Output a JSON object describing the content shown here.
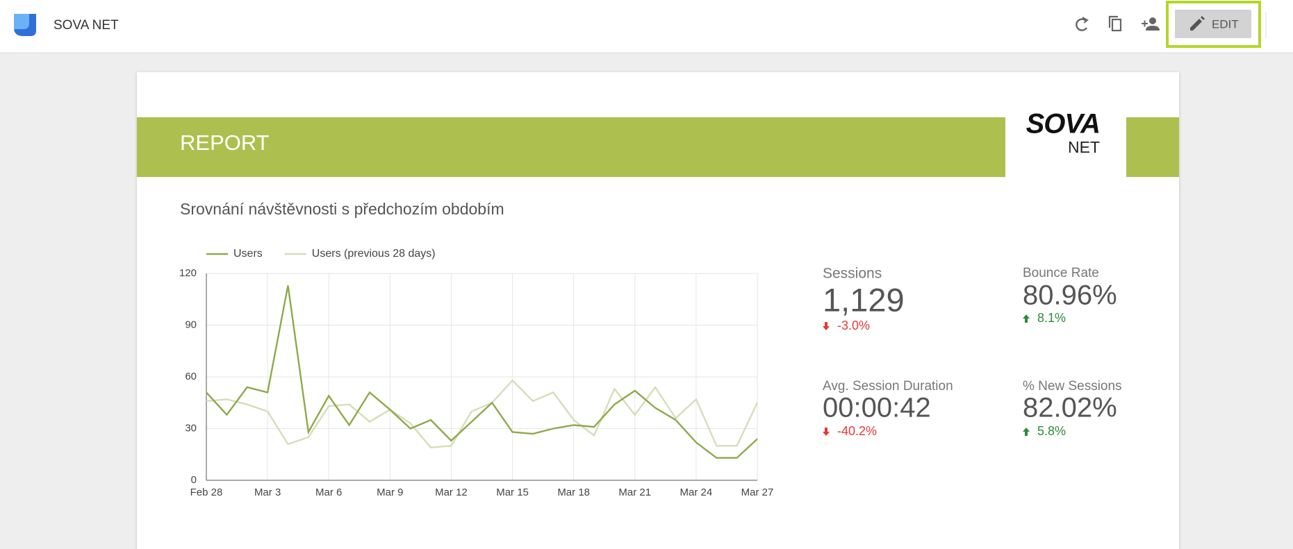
{
  "header": {
    "title": "SOVA NET",
    "edit_button": "EDIT"
  },
  "report": {
    "banner": "REPORT",
    "logo_top": "SOVA",
    "logo_bottom": "NET",
    "subtitle": "Srovnání návštěvnosti s předchozím obdobím"
  },
  "chart_data": {
    "type": "line",
    "categories": [
      "Feb 28",
      null,
      null,
      "Mar 3",
      null,
      null,
      "Mar 6",
      null,
      null,
      "Mar 9",
      null,
      null,
      "Mar 12",
      null,
      null,
      "Mar 15",
      null,
      null,
      "Mar 18",
      null,
      null,
      "Mar 21",
      null,
      null,
      "Mar 24",
      null,
      null,
      "Mar 27"
    ],
    "series": [
      {
        "name": "Users",
        "color": "#8fa84a",
        "values": [
          51,
          38,
          54,
          51,
          113,
          28,
          49,
          32,
          51,
          41,
          30,
          35,
          23,
          34,
          45,
          28,
          27,
          30,
          32,
          31,
          44,
          52,
          42,
          35,
          22,
          13,
          13,
          24
        ]
      },
      {
        "name": "Users (previous 28 days)",
        "color": "#d6ddba",
        "values": [
          46,
          47,
          44,
          40,
          21,
          25,
          43,
          44,
          34,
          41,
          33,
          19,
          20,
          40,
          45,
          58,
          46,
          51,
          35,
          26,
          53,
          38,
          54,
          36,
          47,
          20,
          20,
          45
        ]
      }
    ],
    "ylim": [
      0,
      120
    ],
    "yticks": [
      0,
      30,
      60,
      90,
      120
    ],
    "grid": true,
    "legend": "top"
  },
  "scorecards": [
    {
      "label": "Sessions",
      "value": "1,129",
      "change": "-3.0%"
    },
    {
      "label": "Bounce Rate",
      "value": "80.96%",
      "change": "8.1%"
    },
    {
      "label": "Avg. Session Duration",
      "value": "00:00:42",
      "change": "-40.2%"
    },
    {
      "label": "% New Sessions",
      "value": "82.02%",
      "change": "5.8%"
    }
  ]
}
